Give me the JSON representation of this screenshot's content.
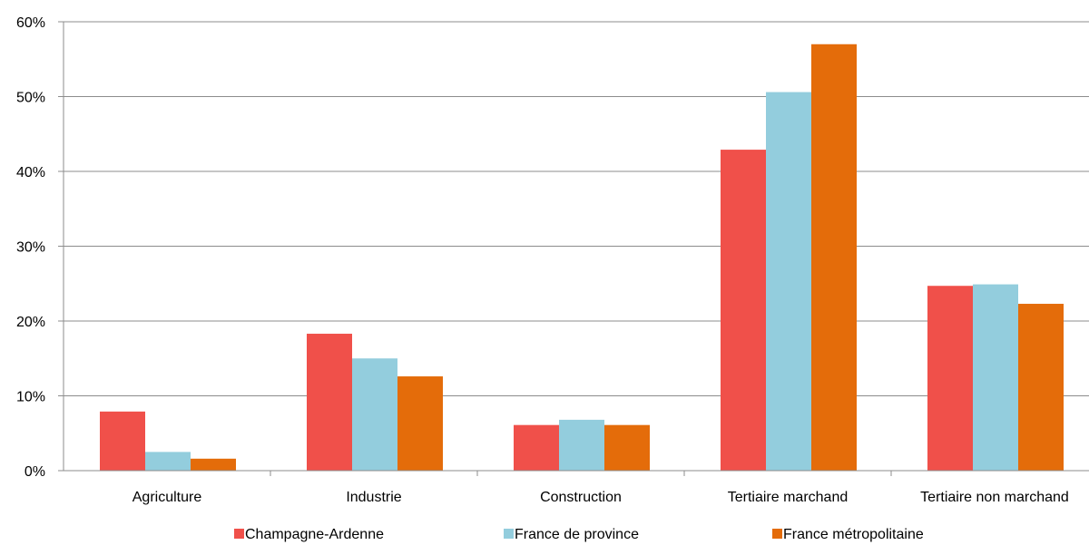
{
  "chart_data": {
    "type": "bar",
    "title": "",
    "xlabel": "",
    "ylabel": "",
    "categories": [
      "Agriculture",
      "Industrie",
      "Construction",
      "Tertiaire marchand",
      "Tertiaire non marchand"
    ],
    "series": [
      {
        "name": "Champagne-Ardenne",
        "color": "#f0504a",
        "values": [
          7.9,
          18.3,
          6.1,
          42.9,
          24.7
        ]
      },
      {
        "name": "France de province",
        "color": "#93cddd",
        "values": [
          2.5,
          15.0,
          6.8,
          50.6,
          24.9
        ]
      },
      {
        "name": "France métropolitaine",
        "color": "#e46c0a",
        "values": [
          1.6,
          12.6,
          6.1,
          57.0,
          22.3
        ]
      }
    ],
    "ylim": [
      0,
      60
    ],
    "yticks": [
      0,
      10,
      20,
      30,
      40,
      50,
      60
    ],
    "ytick_labels": [
      "0%",
      "10%",
      "20%",
      "30%",
      "40%",
      "50%",
      "60%"
    ],
    "grid": true,
    "legend_position": "bottom"
  }
}
